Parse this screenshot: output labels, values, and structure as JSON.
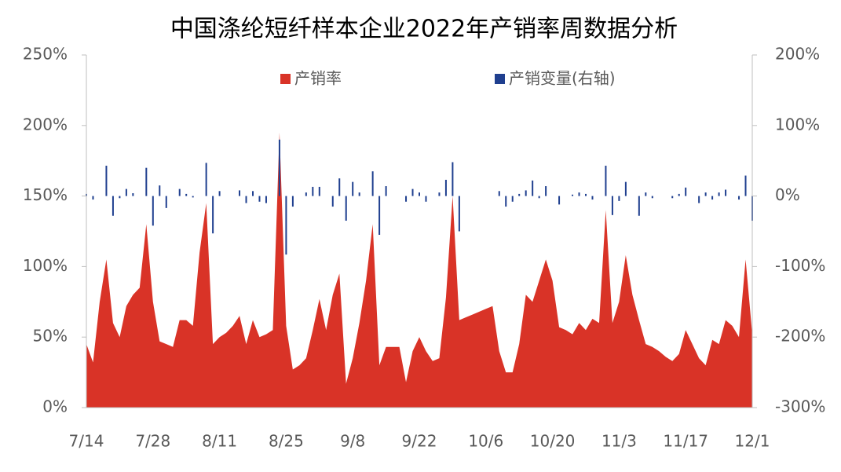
{
  "chart_data": {
    "type": "area-bar",
    "title": "中国涤纶短纤样本企业2022年产销率周数据分析",
    "categories": [
      "7/14",
      null,
      null,
      null,
      null,
      null,
      null,
      null,
      null,
      null,
      "7/28",
      null,
      null,
      null,
      null,
      null,
      null,
      null,
      null,
      null,
      "8/11",
      null,
      null,
      null,
      null,
      null,
      null,
      null,
      null,
      null,
      "8/25",
      null,
      null,
      null,
      null,
      null,
      null,
      null,
      null,
      null,
      "9/8",
      null,
      null,
      null,
      null,
      null,
      null,
      null,
      null,
      null,
      "9/22",
      null,
      null,
      null,
      null,
      null,
      null,
      null,
      null,
      null,
      "10/6",
      null,
      null,
      null,
      null,
      null,
      null,
      null,
      null,
      null,
      "10/20",
      null,
      null,
      null,
      null,
      null,
      null,
      null,
      null,
      null,
      "11/3",
      null,
      null,
      null,
      null,
      null,
      null,
      null,
      null,
      null,
      "11/17",
      null,
      null,
      null,
      null,
      null,
      null,
      null,
      null,
      null,
      "12/1"
    ],
    "series": [
      {
        "name": "产销率",
        "color": "#d93327",
        "kind": "area",
        "values": [
          45,
          32,
          75,
          105,
          60,
          50,
          72,
          80,
          85,
          130,
          75,
          47,
          45,
          43,
          62,
          62,
          58,
          110,
          145,
          45,
          50,
          53,
          58,
          65,
          45,
          62,
          50,
          52,
          55,
          195,
          58,
          27,
          30,
          35,
          55,
          77,
          55,
          80,
          95,
          17,
          35,
          60,
          90,
          130,
          30,
          43,
          43,
          43,
          18,
          40,
          50,
          40,
          33,
          35,
          78,
          150,
          62,
          64,
          66,
          68,
          70,
          72,
          40,
          25,
          25,
          45,
          80,
          75,
          90,
          105,
          90,
          57,
          55,
          52,
          60,
          55,
          63,
          60,
          140,
          60,
          75,
          108,
          80,
          62,
          45,
          43,
          40,
          36,
          33,
          38,
          55,
          45,
          35,
          30,
          48,
          45,
          62,
          58,
          50,
          105,
          52
        ]
      },
      {
        "name": "产销变量(右轴)",
        "color": "#1f3f8f",
        "kind": "bar",
        "axis": "y2",
        "values": [
          3,
          -5,
          0,
          43,
          -28,
          -3,
          10,
          4,
          0,
          40,
          -42,
          15,
          -17,
          0,
          10,
          3,
          -2,
          0,
          47,
          -53,
          7,
          0,
          0,
          8,
          -10,
          7,
          -8,
          -10,
          0,
          80,
          -83,
          -15,
          0,
          5,
          13,
          13,
          0,
          -15,
          25,
          -35,
          20,
          5,
          0,
          35,
          -55,
          14,
          0,
          0,
          -8,
          10,
          5,
          -8,
          0,
          5,
          23,
          48,
          -50,
          null,
          null,
          null,
          null,
          null,
          7,
          -15,
          -8,
          3,
          8,
          22,
          -3,
          14,
          0,
          -12,
          0,
          2,
          5,
          3,
          -5,
          0,
          43,
          -27,
          -7,
          20,
          0,
          -28,
          5,
          -3,
          0,
          0,
          -3,
          3,
          12,
          0,
          -10,
          5,
          -5,
          5,
          9,
          0,
          -5,
          29,
          -35
        ]
      }
    ],
    "ylim": [
      0,
      250
    ],
    "yticks": [
      {
        "value": 0,
        "label": "0%"
      },
      {
        "value": 50,
        "label": "50%"
      },
      {
        "value": 100,
        "label": "100%"
      },
      {
        "value": 150,
        "label": "150%"
      },
      {
        "value": 200,
        "label": "200%"
      },
      {
        "value": 250,
        "label": "250%"
      }
    ],
    "y2lim": [
      -300,
      200
    ],
    "y2ticks": [
      {
        "value": -300,
        "label": "-300%"
      },
      {
        "value": -200,
        "label": "-200%"
      },
      {
        "value": -100,
        "label": "-100%"
      },
      {
        "value": 0,
        "label": "0%"
      },
      {
        "value": 100,
        "label": "100%"
      },
      {
        "value": 200,
        "label": "200%"
      }
    ],
    "legend": "top"
  }
}
